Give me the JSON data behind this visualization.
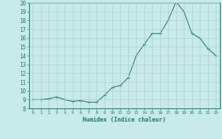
{
  "x": [
    0,
    1,
    2,
    3,
    4,
    5,
    6,
    7,
    8,
    9,
    10,
    11,
    12,
    13,
    14,
    15,
    16,
    17,
    18,
    19,
    20,
    21,
    22,
    23
  ],
  "y": [
    9.0,
    9.0,
    9.1,
    9.3,
    9.0,
    8.8,
    8.9,
    8.7,
    8.7,
    9.5,
    10.4,
    10.6,
    11.5,
    14.0,
    15.3,
    16.5,
    16.5,
    18.0,
    20.1,
    19.0,
    16.5,
    16.0,
    14.8,
    14.0
  ],
  "line_color": "#1a7a6e",
  "marker_color": "#1a7a6e",
  "bg_color": "#c8eae8",
  "grid_color": "#a8d0cc",
  "axis_color": "#1a7a6e",
  "xlabel": "Humidex (Indice chaleur)",
  "ylim": [
    8,
    20
  ],
  "xlim": [
    -0.5,
    23.5
  ],
  "yticks": [
    8,
    9,
    10,
    11,
    12,
    13,
    14,
    15,
    16,
    17,
    18,
    19,
    20
  ],
  "xticks": [
    0,
    1,
    2,
    3,
    4,
    5,
    6,
    7,
    8,
    9,
    10,
    11,
    12,
    13,
    14,
    15,
    16,
    17,
    18,
    19,
    20,
    21,
    22,
    23
  ],
  "figwidth": 3.2,
  "figheight": 2.0,
  "dpi": 100
}
